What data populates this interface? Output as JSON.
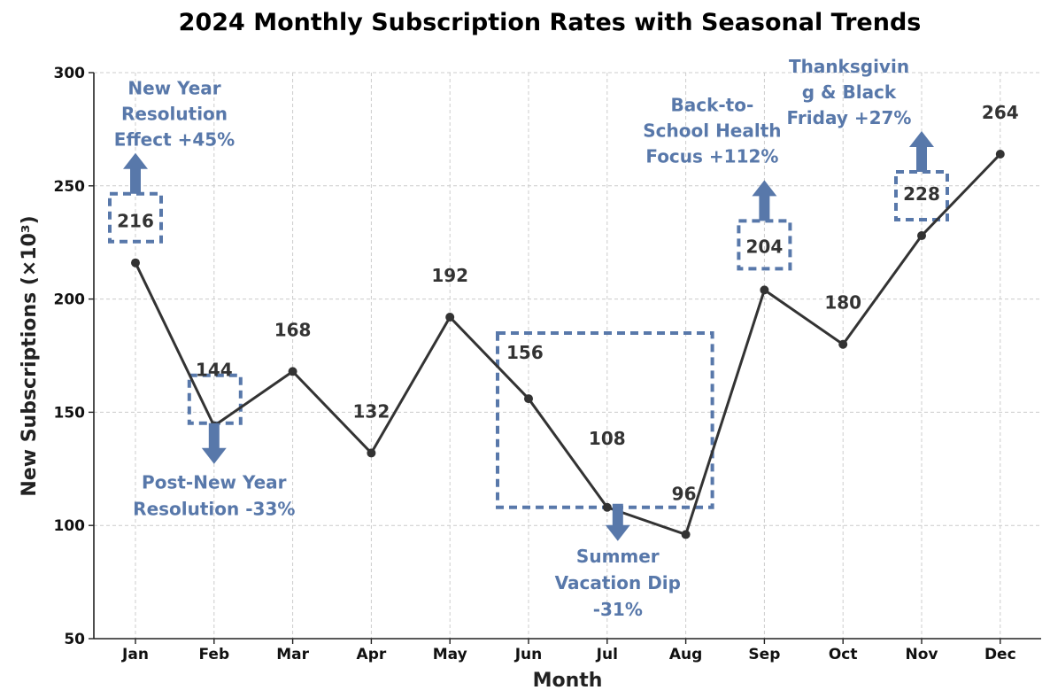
{
  "chart_data": {
    "type": "line",
    "title": "2024 Monthly Subscription Rates with Seasonal Trends",
    "xlabel": "Month",
    "ylabel": "New Subscriptions (×10³)",
    "ylim": [
      50,
      300
    ],
    "yticks": [
      50,
      100,
      150,
      200,
      250,
      300
    ],
    "grid": true,
    "categories": [
      "Jan",
      "Feb",
      "Mar",
      "Apr",
      "May",
      "Jun",
      "Jul",
      "Aug",
      "Sep",
      "Oct",
      "Nov",
      "Dec"
    ],
    "series": [
      {
        "name": "New Subscriptions",
        "values": [
          216,
          144,
          168,
          132,
          192,
          156,
          108,
          96,
          204,
          180,
          228,
          264
        ]
      }
    ],
    "data_labels": [
      "216",
      "144",
      "168",
      "132",
      "192",
      "156",
      "108",
      "96",
      "204",
      "180",
      "228",
      "264"
    ],
    "annotations": [
      {
        "month": "Jan",
        "text_lines": [
          "New Year",
          "Resolution",
          "Effect +45%"
        ],
        "direction": "up"
      },
      {
        "month": "Feb",
        "text_lines": [
          "Post-New Year",
          "Resolution -33%"
        ],
        "direction": "down"
      },
      {
        "month": "Jul",
        "text_lines": [
          "Summer",
          "Vacation Dip",
          "-31%"
        ],
        "direction": "down",
        "box_months": [
          "Jun",
          "Jul",
          "Aug"
        ]
      },
      {
        "month": "Sep",
        "text_lines": [
          "Back-to-",
          "School Health",
          "Focus +112%"
        ],
        "direction": "up"
      },
      {
        "month": "Nov",
        "text_lines": [
          "Thanksgivin",
          "g & Black",
          "Friday +27%"
        ],
        "direction": "up"
      }
    ]
  },
  "colors": {
    "line": "#333333",
    "annotation": "#5878aa",
    "grid": "#cccccc",
    "axis": "#222222"
  }
}
